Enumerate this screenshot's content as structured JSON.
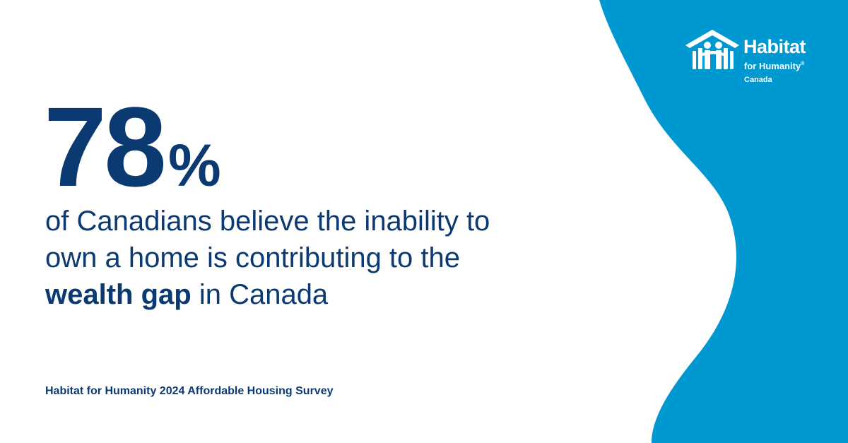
{
  "colors": {
    "background": "#ffffff",
    "accent_blue": "#0098d0",
    "text_navy": "#0b3a73",
    "logo_text": "#ffffff"
  },
  "stat": {
    "number": "78",
    "percent": "%"
  },
  "statement": {
    "line1": "of Canadians believe the inability to",
    "line2": "own a home is contributing to the",
    "line3_bold": "wealth gap",
    "line3_rest": " in Canada"
  },
  "source": "Habitat for Humanity 2024 Affordable Housing Survey",
  "logo": {
    "icon": "habitat-house-people-icon",
    "title": "Habitat",
    "subtitle": "for Humanity",
    "registered": "®",
    "country": "Canada"
  }
}
